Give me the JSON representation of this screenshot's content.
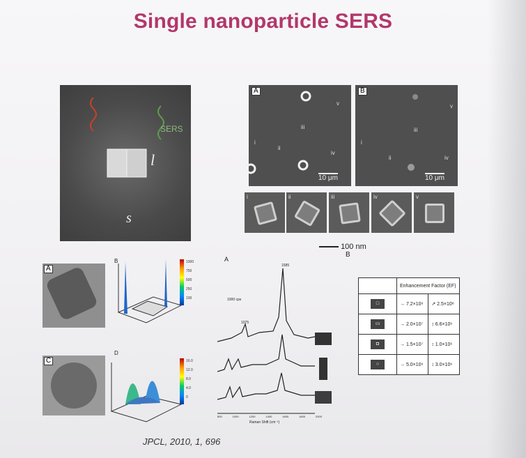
{
  "slide": {
    "title": "Single nanoparticle SERS",
    "citation": "JPCL, 2010, 1, 696"
  },
  "panel_top_left": {
    "label_sers": "SERS",
    "label_l": "l",
    "label_s": "s"
  },
  "panel_top_right": {
    "panel_a": "A",
    "panel_b": "B",
    "romans_a": [
      "i",
      "ii",
      "iii",
      "iv",
      "v"
    ],
    "romans_b": [
      "i",
      "ii",
      "iii",
      "iv",
      "v"
    ],
    "scale_bar": "10 μm"
  },
  "tiles": {
    "labels": [
      "i",
      "ii",
      "iii",
      "iv",
      "v"
    ],
    "scale_bar": "100 nm",
    "scale_sub": "B"
  },
  "bottom_left": {
    "panel_a": "A",
    "panel_b": "B",
    "panel_c": "C",
    "panel_d": "D",
    "colorbar_top": [
      "1000",
      "750",
      "500",
      "250",
      "100"
    ],
    "colorbar_bottom": [
      "16.0",
      "12.0",
      "8.0",
      "4.0",
      "0"
    ]
  },
  "spectrum": {
    "panel": "A",
    "peak_main": "1585",
    "peak_small": "1075",
    "unit": "1000 cps",
    "xaxis": "Raman Shift (cm⁻¹)",
    "ticks": [
      "800",
      "1000",
      "1200",
      "1400",
      "1600",
      "1800",
      "2000"
    ]
  },
  "ef_table": {
    "header": "Enhancement Factor (EF)",
    "rows": [
      {
        "a": "→ 7.2×10⁶",
        "b": "↗ 2.5×10⁸"
      },
      {
        "a": "→ 2.0×10⁷",
        "b": "↕ 6.6×10⁶"
      },
      {
        "a": "→ 1.5×10⁷",
        "b": "↕ 1.0×10⁶"
      },
      {
        "a": "→ 5.0×10⁶",
        "b": "↕ 3.0×10⁶"
      }
    ]
  }
}
